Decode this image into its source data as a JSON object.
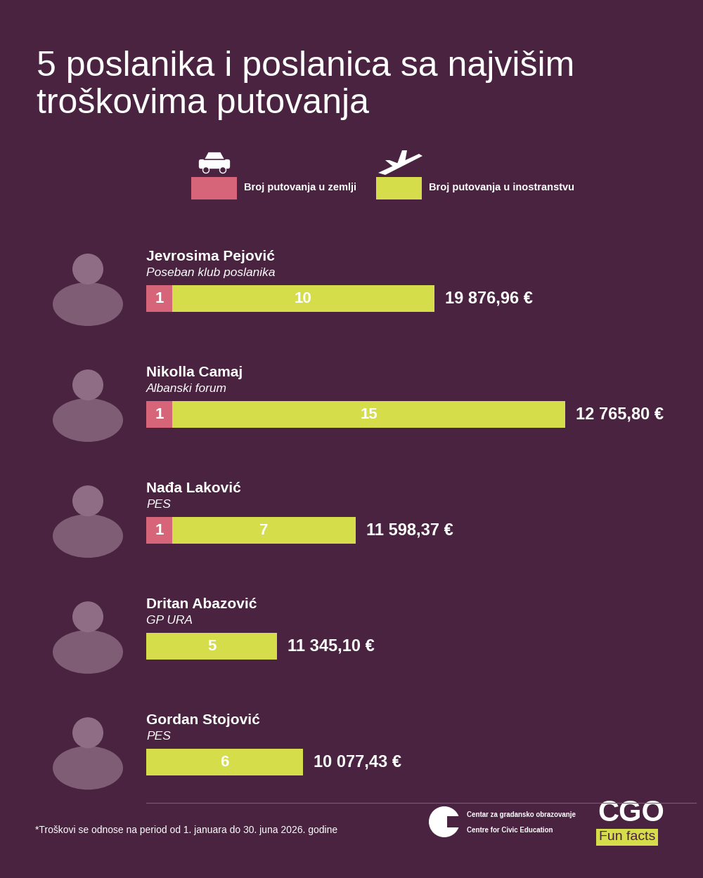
{
  "chart_data": {
    "type": "bar",
    "orientation": "horizontal",
    "stacked": true,
    "data_labels": true,
    "tick_labels": false,
    "grid": false,
    "legend": "top",
    "title": "5 poslanika i poslanica sa najvišim troškovima putovanja",
    "categories": [
      "Jevrosima Pejović",
      "Nikolla Camaj",
      "Nađa Laković",
      "Dritan Abazović",
      "Gordan Stojović"
    ],
    "parties": [
      "Poseban klub poslanika",
      "Albanski forum",
      "PES",
      "GP URA",
      "PES"
    ],
    "series": [
      {
        "name": "Broj putovanja u zemlji",
        "color": "#d6657a",
        "values": [
          1,
          1,
          1,
          null,
          null
        ]
      },
      {
        "name": "Broj putovanja u inostranstvu",
        "color": "#d5dd4b",
        "values": [
          10,
          15,
          7,
          5,
          6
        ]
      }
    ],
    "cost_labels": [
      "19 876,96 €",
      "12 765,80 €",
      "11 598,37 €",
      "11 345,10 €",
      "10 077,43 €"
    ],
    "xlim": [
      0,
      21
    ],
    "xticks": []
  },
  "footer": {
    "note": "*Troškovi se odnose na period od 1. januara do 30. juna 2026. godine",
    "logo_local": "Centar za gradansko obrazovanje",
    "logo_english": "Centre for Civic Education",
    "brand": "CGO",
    "brand_tag": "Fun facts"
  }
}
